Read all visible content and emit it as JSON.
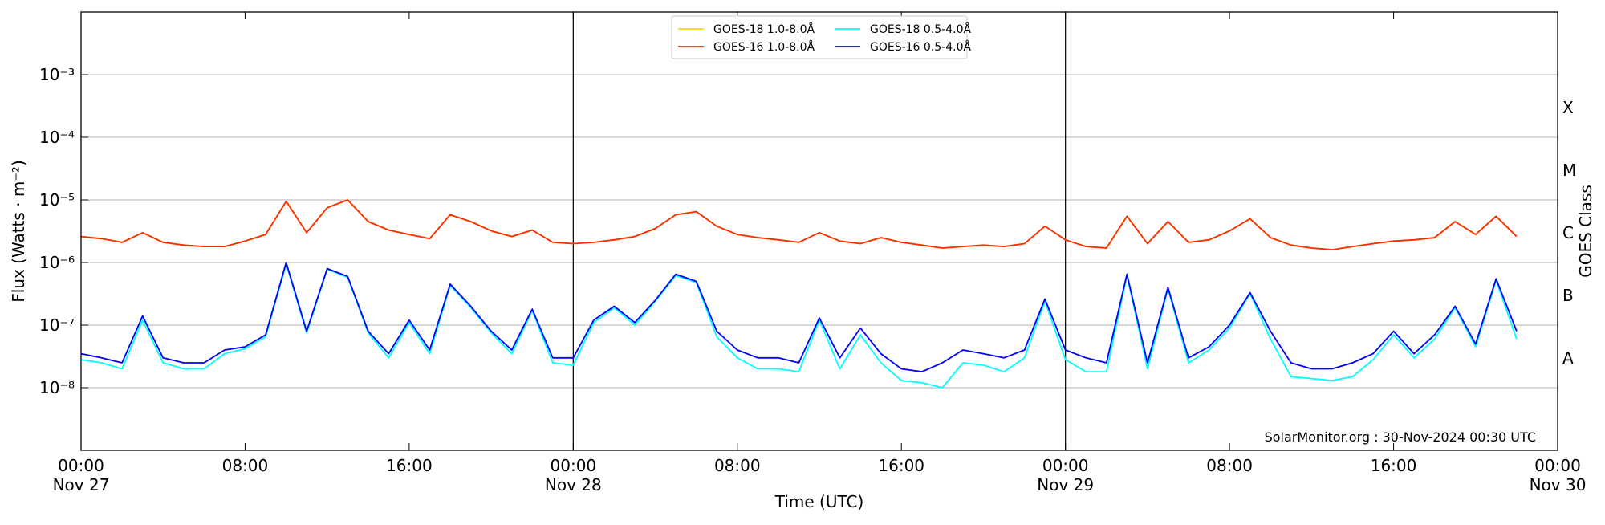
{
  "chart_data": {
    "type": "line",
    "ylabel": "Flux (Watts · m⁻²)",
    "xlabel": "Time (UTC)",
    "y2label": "GOES Class",
    "annotation": "SolarMonitor.org : 30-Nov-2024 00:30 UTC",
    "ylog": true,
    "grid": true,
    "legend": "top",
    "ylim": [
      1e-09,
      0.01
    ],
    "yticks": [
      {
        "value": 1e-08,
        "label": "10⁻⁸"
      },
      {
        "value": 1e-07,
        "label": "10⁻⁷"
      },
      {
        "value": 1e-06,
        "label": "10⁻⁶"
      },
      {
        "value": 1e-05,
        "label": "10⁻⁵"
      },
      {
        "value": 0.0001,
        "label": "10⁻⁴"
      },
      {
        "value": 0.001,
        "label": "10⁻³"
      }
    ],
    "y2lim": [
      1e-09,
      0.01
    ],
    "y2ticks": [
      {
        "value": 3e-08,
        "label": "A"
      },
      {
        "value": 3e-07,
        "label": "B"
      },
      {
        "value": 3e-06,
        "label": "C"
      },
      {
        "value": 3e-05,
        "label": "M"
      },
      {
        "value": 0.0003,
        "label": "X"
      }
    ],
    "xlim": [
      "Nov 27 00:00",
      "Nov 30 00:00"
    ],
    "xticks": [
      {
        "value": "Nov 27 00:00",
        "label": [
          "00:00",
          "Nov 27"
        ]
      },
      {
        "value": "Nov 27 08:00",
        "label": "08:00"
      },
      {
        "value": "Nov 27 16:00",
        "label": "16:00"
      },
      {
        "value": "Nov 28 00:00",
        "label": [
          "00:00",
          "Nov 28"
        ]
      },
      {
        "value": "Nov 28 08:00",
        "label": "08:00"
      },
      {
        "value": "Nov 28 16:00",
        "label": "16:00"
      },
      {
        "value": "Nov 29 00:00",
        "label": [
          "00:00",
          "Nov 29"
        ]
      },
      {
        "value": "Nov 29 08:00",
        "label": "08:00"
      },
      {
        "value": "Nov 29 16:00",
        "label": "16:00"
      },
      {
        "value": "Nov 30 00:00",
        "label": [
          "00:00",
          "Nov 30"
        ]
      }
    ],
    "vlines": [
      "Nov 28 00:00",
      "Nov 29 00:00"
    ],
    "x": [
      "Nov 27 00:00",
      "Nov 27 01:00",
      "Nov 27 02:00",
      "Nov 27 03:00",
      "Nov 27 04:00",
      "Nov 27 05:00",
      "Nov 27 06:00",
      "Nov 27 07:00",
      "Nov 27 08:00",
      "Nov 27 09:00",
      "Nov 27 10:00",
      "Nov 27 11:00",
      "Nov 27 12:00",
      "Nov 27 13:00",
      "Nov 27 14:00",
      "Nov 27 15:00",
      "Nov 27 16:00",
      "Nov 27 17:00",
      "Nov 27 18:00",
      "Nov 27 19:00",
      "Nov 27 20:00",
      "Nov 27 21:00",
      "Nov 27 22:00",
      "Nov 27 23:00",
      "Nov 28 00:00",
      "Nov 28 01:00",
      "Nov 28 02:00",
      "Nov 28 03:00",
      "Nov 28 04:00",
      "Nov 28 05:00",
      "Nov 28 06:00",
      "Nov 28 07:00",
      "Nov 28 08:00",
      "Nov 28 09:00",
      "Nov 28 10:00",
      "Nov 28 11:00",
      "Nov 28 12:00",
      "Nov 28 13:00",
      "Nov 28 14:00",
      "Nov 28 15:00",
      "Nov 28 16:00",
      "Nov 28 17:00",
      "Nov 28 18:00",
      "Nov 28 19:00",
      "Nov 28 20:00",
      "Nov 28 21:00",
      "Nov 28 22:00",
      "Nov 28 23:00",
      "Nov 29 00:00",
      "Nov 29 01:00",
      "Nov 29 02:00",
      "Nov 29 03:00",
      "Nov 29 04:00",
      "Nov 29 05:00",
      "Nov 29 06:00",
      "Nov 29 07:00",
      "Nov 29 08:00",
      "Nov 29 09:00",
      "Nov 29 10:00",
      "Nov 29 11:00",
      "Nov 29 12:00",
      "Nov 29 13:00",
      "Nov 29 14:00",
      "Nov 29 15:00",
      "Nov 29 16:00",
      "Nov 29 17:00",
      "Nov 29 18:00",
      "Nov 29 19:00",
      "Nov 29 20:00",
      "Nov 29 21:00",
      "Nov 29 22:00"
    ],
    "series": [
      {
        "name": "GOES-18 1.0-8.0Å",
        "color": "#ffd700",
        "values": [
          2.6e-06,
          2.4e-06,
          2.1e-06,
          3e-06,
          2.1e-06,
          1.9e-06,
          1.8e-06,
          1.8e-06,
          2.2e-06,
          2.8e-06,
          9.5e-06,
          3e-06,
          7.5e-06,
          1e-05,
          4.5e-06,
          3.3e-06,
          2.8e-06,
          2.4e-06,
          5.8e-06,
          4.5e-06,
          3.2e-06,
          2.6e-06,
          3.3e-06,
          2.1e-06,
          2e-06,
          2.1e-06,
          2.3e-06,
          2.6e-06,
          3.5e-06,
          5.8e-06,
          6.5e-06,
          3.8e-06,
          2.8e-06,
          2.5e-06,
          2.3e-06,
          2.1e-06,
          3e-06,
          2.2e-06,
          2e-06,
          2.5e-06,
          2.1e-06,
          1.9e-06,
          1.7e-06,
          1.8e-06,
          1.9e-06,
          1.8e-06,
          2e-06,
          3.8e-06,
          2.3e-06,
          1.8e-06,
          1.7e-06,
          5.5e-06,
          2e-06,
          4.5e-06,
          2.1e-06,
          2.3e-06,
          3.2e-06,
          5e-06,
          2.5e-06,
          1.9e-06,
          1.7e-06,
          1.6e-06,
          1.8e-06,
          2e-06,
          2.2e-06,
          2.3e-06,
          2.5e-06,
          4.5e-06,
          2.8e-06,
          5.5e-06,
          2.6e-06
        ]
      },
      {
        "name": "GOES-16 1.0-8.0Å",
        "color": "#ff2a00",
        "values": [
          2.6e-06,
          2.4e-06,
          2.1e-06,
          3e-06,
          2.1e-06,
          1.9e-06,
          1.8e-06,
          1.8e-06,
          2.2e-06,
          2.8e-06,
          9.5e-06,
          3e-06,
          7.5e-06,
          1e-05,
          4.5e-06,
          3.3e-06,
          2.8e-06,
          2.4e-06,
          5.8e-06,
          4.5e-06,
          3.2e-06,
          2.6e-06,
          3.3e-06,
          2.1e-06,
          2e-06,
          2.1e-06,
          2.3e-06,
          2.6e-06,
          3.5e-06,
          5.8e-06,
          6.5e-06,
          3.8e-06,
          2.8e-06,
          2.5e-06,
          2.3e-06,
          2.1e-06,
          3e-06,
          2.2e-06,
          2e-06,
          2.5e-06,
          2.1e-06,
          1.9e-06,
          1.7e-06,
          1.8e-06,
          1.9e-06,
          1.8e-06,
          2e-06,
          3.8e-06,
          2.3e-06,
          1.8e-06,
          1.7e-06,
          5.5e-06,
          2e-06,
          4.5e-06,
          2.1e-06,
          2.3e-06,
          3.2e-06,
          5e-06,
          2.5e-06,
          1.9e-06,
          1.7e-06,
          1.6e-06,
          1.8e-06,
          2e-06,
          2.2e-06,
          2.3e-06,
          2.5e-06,
          4.5e-06,
          2.8e-06,
          5.5e-06,
          2.6e-06
        ]
      },
      {
        "name": "GOES-18 0.5-4.0Å",
        "color": "#00ffff",
        "values": [
          2.8e-08,
          2.5e-08,
          2e-08,
          1.2e-07,
          2.5e-08,
          2e-08,
          2e-08,
          3.5e-08,
          4.2e-08,
          6.5e-08,
          9.5e-07,
          7.5e-08,
          7.8e-07,
          5.8e-07,
          7.5e-08,
          3e-08,
          1.1e-07,
          3.5e-08,
          4.3e-07,
          1.9e-07,
          7.5e-08,
          3.5e-08,
          1.7e-07,
          2.5e-08,
          2.3e-08,
          1.1e-07,
          1.9e-07,
          1e-07,
          2.4e-07,
          6.2e-07,
          4.8e-07,
          6.5e-08,
          3e-08,
          2e-08,
          2e-08,
          1.8e-08,
          1.2e-07,
          2e-08,
          7e-08,
          2.5e-08,
          1.3e-08,
          1.2e-08,
          1e-08,
          2.5e-08,
          2.3e-08,
          1.8e-08,
          3e-08,
          2.4e-07,
          2.8e-08,
          1.8e-08,
          1.8e-08,
          6.2e-07,
          2e-08,
          3.8e-07,
          2.5e-08,
          4e-08,
          9e-08,
          3.2e-07,
          6e-08,
          1.5e-08,
          1.4e-08,
          1.3e-08,
          1.5e-08,
          2.8e-08,
          7e-08,
          3e-08,
          6e-08,
          1.9e-07,
          4.5e-08,
          5.2e-07,
          6e-08
        ]
      },
      {
        "name": "GOES-16 0.5-4.0Å",
        "color": "#0000ff",
        "values": [
          3.5e-08,
          3e-08,
          2.5e-08,
          1.4e-07,
          3e-08,
          2.5e-08,
          2.5e-08,
          4e-08,
          4.5e-08,
          7e-08,
          1e-06,
          8e-08,
          8e-07,
          6e-07,
          8e-08,
          3.5e-08,
          1.2e-07,
          4e-08,
          4.5e-07,
          2e-07,
          8e-08,
          4e-08,
          1.8e-07,
          3e-08,
          3e-08,
          1.2e-07,
          2e-07,
          1.1e-07,
          2.5e-07,
          6.5e-07,
          5e-07,
          8e-08,
          4e-08,
          3e-08,
          3e-08,
          2.5e-08,
          1.3e-07,
          3e-08,
          9e-08,
          3.5e-08,
          2e-08,
          1.8e-08,
          2.5e-08,
          4e-08,
          3.5e-08,
          3e-08,
          4e-08,
          2.6e-07,
          4e-08,
          3e-08,
          2.5e-08,
          6.5e-07,
          2.5e-08,
          4e-07,
          3e-08,
          4.5e-08,
          1e-07,
          3.3e-07,
          8e-08,
          2.5e-08,
          2e-08,
          2e-08,
          2.5e-08,
          3.5e-08,
          8e-08,
          3.5e-08,
          7e-08,
          2e-07,
          5e-08,
          5.5e-07,
          8e-08
        ]
      }
    ]
  }
}
